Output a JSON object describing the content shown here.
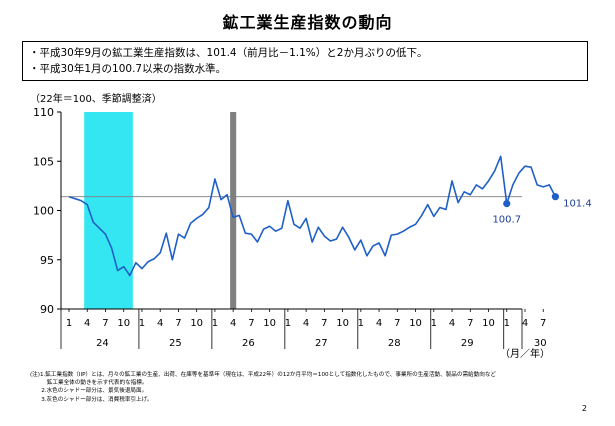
{
  "title": "鉱工業生産指数の動向",
  "summary": [
    "・平成30年9月の鉱工業生産指数は、101.4（前月比－1.1%）と2か月ぶりの低下。",
    "・平成30年1月の100.7以来の指数水準。"
  ],
  "unit_note": "（22年＝100、季節調整済）",
  "chart_data": {
    "type": "line",
    "title": "",
    "xlabel": "（月／年）",
    "ylabel": "",
    "ylim": [
      90,
      110
    ],
    "yticks": [
      90,
      95,
      100,
      105,
      110
    ],
    "grid": false,
    "year_labels": [
      "24",
      "25",
      "26",
      "27",
      "28",
      "29",
      "30"
    ],
    "month_tick_labels": [
      "1",
      "4",
      "7",
      "10"
    ],
    "last_year_month_tick_labels": [
      "1",
      "4",
      "7"
    ],
    "shading": [
      {
        "kind": "recession",
        "color": "#33e6f2",
        "from": "2012-04",
        "to": "2012-11"
      },
      {
        "kind": "tax-increase",
        "color": "#808080",
        "from": "2014-04",
        "to": "2014-04"
      }
    ],
    "reference_line": {
      "value": 101.4,
      "color": "#7f7f7f"
    },
    "series": [
      {
        "color": "#1f5fc8",
        "x": [
          "2012-01",
          "2012-02",
          "2012-03",
          "2012-04",
          "2012-05",
          "2012-06",
          "2012-07",
          "2012-08",
          "2012-09",
          "2012-10",
          "2012-11",
          "2012-12",
          "2013-01",
          "2013-02",
          "2013-03",
          "2013-04",
          "2013-05",
          "2013-06",
          "2013-07",
          "2013-08",
          "2013-09",
          "2013-10",
          "2013-11",
          "2013-12",
          "2014-01",
          "2014-02",
          "2014-03",
          "2014-04",
          "2014-05",
          "2014-06",
          "2014-07",
          "2014-08",
          "2014-09",
          "2014-10",
          "2014-11",
          "2014-12",
          "2015-01",
          "2015-02",
          "2015-03",
          "2015-04",
          "2015-05",
          "2015-06",
          "2015-07",
          "2015-08",
          "2015-09",
          "2015-10",
          "2015-11",
          "2015-12",
          "2016-01",
          "2016-02",
          "2016-03",
          "2016-04",
          "2016-05",
          "2016-06",
          "2016-07",
          "2016-08",
          "2016-09",
          "2016-10",
          "2016-11",
          "2016-12",
          "2017-01",
          "2017-02",
          "2017-03",
          "2017-04",
          "2017-05",
          "2017-06",
          "2017-07",
          "2017-08",
          "2017-09",
          "2017-10",
          "2017-11",
          "2017-12",
          "2018-01",
          "2018-02",
          "2018-03",
          "2018-04",
          "2018-05",
          "2018-06",
          "2018-07",
          "2018-08",
          "2018-09"
        ],
        "values": [
          101.4,
          101.2,
          101.0,
          100.6,
          98.8,
          98.2,
          97.6,
          96.2,
          93.9,
          94.3,
          93.4,
          94.7,
          94.1,
          94.8,
          95.1,
          95.7,
          97.7,
          95.0,
          97.6,
          97.2,
          98.7,
          99.2,
          99.6,
          100.3,
          103.2,
          101.1,
          101.6,
          99.3,
          99.5,
          97.7,
          97.6,
          96.8,
          98.1,
          98.4,
          97.9,
          98.2,
          101.0,
          98.6,
          98.2,
          99.2,
          96.8,
          98.3,
          97.4,
          96.9,
          97.1,
          98.3,
          97.3,
          96.0,
          97.0,
          95.4,
          96.4,
          96.7,
          95.4,
          97.5,
          97.6,
          97.9,
          98.3,
          98.6,
          99.5,
          100.6,
          99.4,
          100.3,
          100.1,
          103.0,
          100.8,
          101.9,
          101.6,
          102.6,
          102.2,
          103.0,
          104.0,
          105.5,
          100.7,
          102.6,
          103.8,
          104.5,
          104.4,
          102.6,
          102.4,
          102.6,
          101.4
        ]
      }
    ],
    "annotations": [
      {
        "x": "2018-01",
        "y": 100.7,
        "text": "100.7"
      },
      {
        "x": "2018-09",
        "y": 101.4,
        "text": "101.4"
      }
    ]
  },
  "notes": [
    "(注)1.鉱工業指数（IIP）とは、月々の鉱工業の生産、出荷、在庫等を基準年（現在は、平成22年）の12か月平均＝100として指数化したもので、事業所の生産活動、製品の需給動向など",
    "　　　鉱工業全体の動きを示す代表的な指標。",
    "　　2.水色のシャドー部分は、景気後退局面。",
    "　　3.灰色のシャドー部分は、消費税率引上げ。"
  ],
  "page_number": "2"
}
